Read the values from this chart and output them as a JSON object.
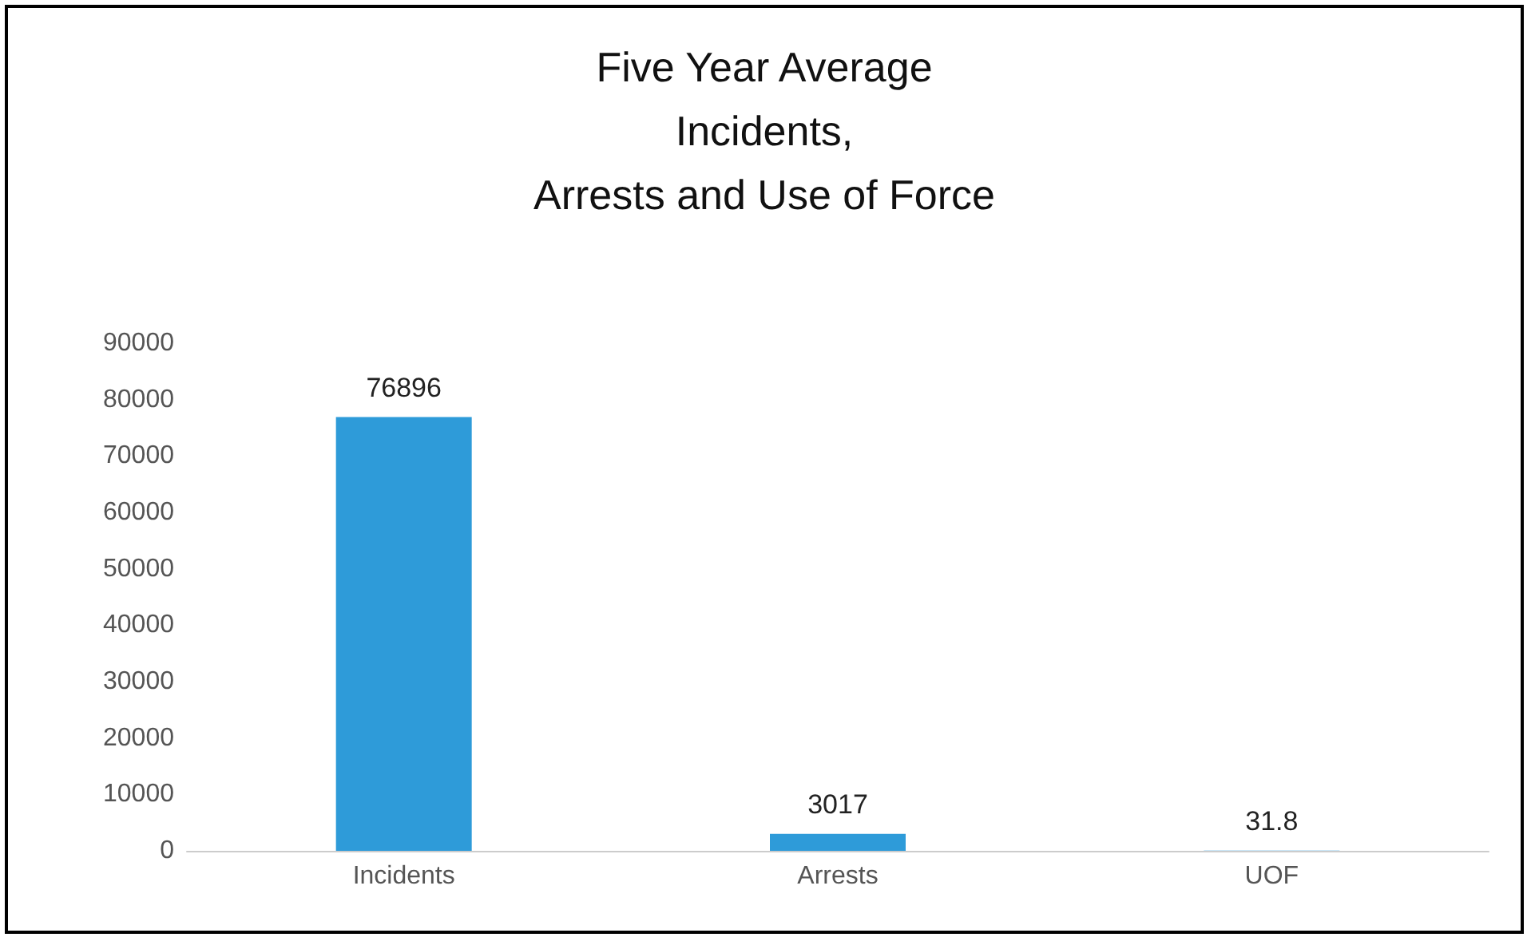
{
  "chart_data": {
    "type": "bar",
    "title": "Five Year Average\nIncidents,\nArrests and Use of Force",
    "categories": [
      "Incidents",
      "Arrests",
      "UOF"
    ],
    "values": [
      76896,
      3017,
      31.8
    ],
    "color": "#2e9bd9",
    "ylim": [
      0,
      90000
    ],
    "yticks": [
      0,
      10000,
      20000,
      30000,
      40000,
      50000,
      60000,
      70000,
      80000,
      90000
    ],
    "data_labels": true,
    "grid": false
  }
}
